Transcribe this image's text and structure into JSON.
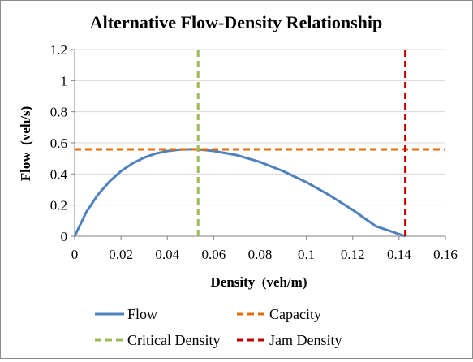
{
  "chart_data": {
    "type": "line",
    "title": "Alternative Flow-Density Relationship",
    "xlabel": "Density  (veh/m)",
    "ylabel": "Flow  (veh/s)",
    "xlim": [
      0,
      0.16
    ],
    "ylim": [
      0,
      1.2
    ],
    "x_ticks": [
      "0",
      "0.02",
      "0.04",
      "0.06",
      "0.08",
      "0.1",
      "0.12",
      "0.14",
      "0.16"
    ],
    "y_ticks": [
      "0",
      "0.2",
      "0.4",
      "0.6",
      "0.8",
      "1",
      "1.2"
    ],
    "grid": "horizontal",
    "legend_position": "bottom",
    "series": [
      {
        "name": "Flow",
        "style": "solid",
        "color": "#4f81bd",
        "points": [
          [
            0,
            0
          ],
          [
            0.005,
            0.154
          ],
          [
            0.01,
            0.266
          ],
          [
            0.015,
            0.351
          ],
          [
            0.02,
            0.418
          ],
          [
            0.025,
            0.468
          ],
          [
            0.03,
            0.505
          ],
          [
            0.035,
            0.531
          ],
          [
            0.04,
            0.547
          ],
          [
            0.045,
            0.556
          ],
          [
            0.05,
            0.559
          ],
          [
            0.0533,
            0.558
          ],
          [
            0.06,
            0.548
          ],
          [
            0.07,
            0.521
          ],
          [
            0.08,
            0.477
          ],
          [
            0.09,
            0.418
          ],
          [
            0.1,
            0.347
          ],
          [
            0.11,
            0.263
          ],
          [
            0.12,
            0.169
          ],
          [
            0.13,
            0.064
          ],
          [
            0.1427,
            0
          ]
        ]
      },
      {
        "name": "Capacity",
        "style": "dashed",
        "color": "#e36c0a",
        "points": [
          [
            0,
            0.558
          ],
          [
            0.16,
            0.558
          ]
        ]
      },
      {
        "name": "Critical Density",
        "style": "dashed",
        "color": "#9bbb59",
        "points": [
          [
            0.0533,
            0
          ],
          [
            0.0533,
            1.2
          ]
        ]
      },
      {
        "name": "Jam Density",
        "style": "dashed",
        "color": "#c00000",
        "points": [
          [
            0.1427,
            0
          ],
          [
            0.1427,
            1.2
          ]
        ]
      }
    ]
  }
}
